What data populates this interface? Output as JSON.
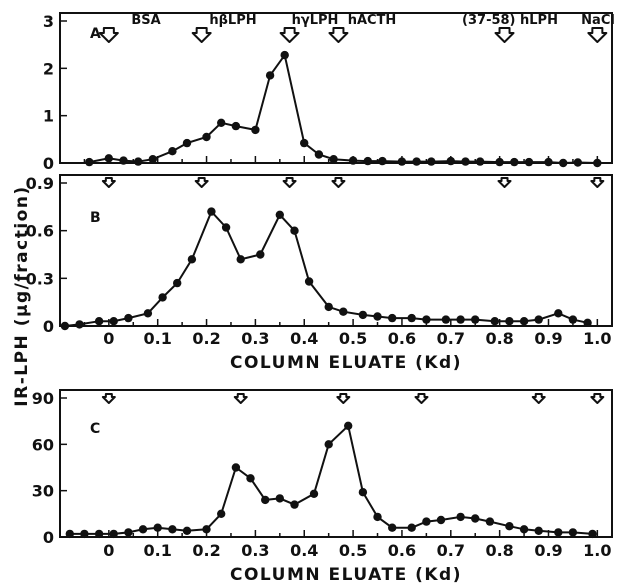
{
  "ylabel": "IR-LPH (μg/fraction)",
  "markers": [
    "BSA",
    "hβLPH",
    "hγLPH",
    "hACTH",
    "(37-58) hLPH",
    "NaCl"
  ],
  "chart_data": [
    {
      "panel": "A",
      "type": "line",
      "xlabel": "",
      "ylabel": "IR-LPH (μg/fraction)",
      "xlim": [
        -0.1,
        1.03
      ],
      "ylim": [
        0,
        3
      ],
      "yticks": [
        "0",
        "1",
        "2",
        "3"
      ],
      "xticks": [],
      "marker_x": [
        0.0,
        0.19,
        0.37,
        0.47,
        0.81,
        1.0
      ],
      "x": [
        -0.04,
        0.0,
        0.03,
        0.06,
        0.09,
        0.13,
        0.16,
        0.2,
        0.23,
        0.26,
        0.3,
        0.33,
        0.36,
        0.4,
        0.43,
        0.46,
        0.5,
        0.53,
        0.56,
        0.6,
        0.63,
        0.66,
        0.7,
        0.73,
        0.76,
        0.8,
        0.83,
        0.86,
        0.9,
        0.93,
        0.96,
        1.0
      ],
      "values": [
        0.02,
        0.1,
        0.05,
        0.03,
        0.08,
        0.25,
        0.42,
        0.55,
        0.85,
        0.78,
        0.7,
        1.85,
        2.28,
        0.42,
        0.18,
        0.08,
        0.05,
        0.04,
        0.04,
        0.03,
        0.03,
        0.03,
        0.04,
        0.03,
        0.03,
        0.02,
        0.02,
        0.02,
        0.02,
        0.0,
        0.01,
        0.0
      ]
    },
    {
      "panel": "B",
      "type": "line",
      "xlabel": "COLUMN ELUATE (Kd)",
      "ylabel": "IR-LPH (μg/fraction)",
      "xlim": [
        -0.1,
        1.03
      ],
      "ylim": [
        0,
        0.9
      ],
      "yticks": [
        "0",
        "0.3",
        "0.6",
        "0.9"
      ],
      "xticks": [
        "0",
        "0.1",
        "0.2",
        "0.3",
        "0.4",
        "0.5",
        "0.6",
        "0.7",
        "0.8",
        "0.9",
        "1.0"
      ],
      "marker_x": [
        0.0,
        0.19,
        0.37,
        0.47,
        0.81,
        1.0
      ],
      "x": [
        -0.09,
        -0.06,
        -0.02,
        0.01,
        0.04,
        0.08,
        0.11,
        0.14,
        0.17,
        0.21,
        0.24,
        0.27,
        0.31,
        0.35,
        0.38,
        0.41,
        0.45,
        0.48,
        0.52,
        0.55,
        0.58,
        0.62,
        0.65,
        0.69,
        0.72,
        0.75,
        0.79,
        0.82,
        0.85,
        0.88,
        0.92,
        0.95,
        0.98
      ],
      "values": [
        0.0,
        0.01,
        0.03,
        0.03,
        0.05,
        0.08,
        0.18,
        0.27,
        0.42,
        0.72,
        0.62,
        0.42,
        0.45,
        0.7,
        0.6,
        0.28,
        0.12,
        0.09,
        0.07,
        0.06,
        0.05,
        0.05,
        0.04,
        0.04,
        0.04,
        0.04,
        0.03,
        0.03,
        0.03,
        0.04,
        0.08,
        0.04,
        0.02
      ]
    },
    {
      "panel": "C",
      "type": "line",
      "xlabel": "COLUMN ELUATE (Kd)",
      "ylabel": "IR-LPH (μg/fraction)",
      "xlim": [
        -0.1,
        1.03
      ],
      "ylim": [
        0,
        90
      ],
      "yticks": [
        "0",
        "30",
        "60",
        "90"
      ],
      "xticks": [
        "0",
        "0.1",
        "0.2",
        "0.3",
        "0.4",
        "0.5",
        "0.6",
        "0.7",
        "0.8",
        "0.9",
        "1.0"
      ],
      "marker_x": [
        0.0,
        0.27,
        0.48,
        0.64,
        0.88,
        1.0
      ],
      "x": [
        -0.08,
        -0.05,
        -0.02,
        0.01,
        0.04,
        0.07,
        0.1,
        0.13,
        0.16,
        0.2,
        0.23,
        0.26,
        0.29,
        0.32,
        0.35,
        0.38,
        0.42,
        0.45,
        0.49,
        0.52,
        0.55,
        0.58,
        0.62,
        0.65,
        0.68,
        0.72,
        0.75,
        0.78,
        0.82,
        0.85,
        0.88,
        0.92,
        0.95,
        0.99
      ],
      "values": [
        2,
        2,
        2,
        2,
        3,
        5,
        6,
        5,
        4,
        5,
        15,
        45,
        38,
        24,
        25,
        21,
        28,
        60,
        72,
        29,
        13,
        6,
        6,
        10,
        11,
        13,
        12,
        10,
        7,
        5,
        4,
        3,
        3,
        2
      ]
    }
  ]
}
